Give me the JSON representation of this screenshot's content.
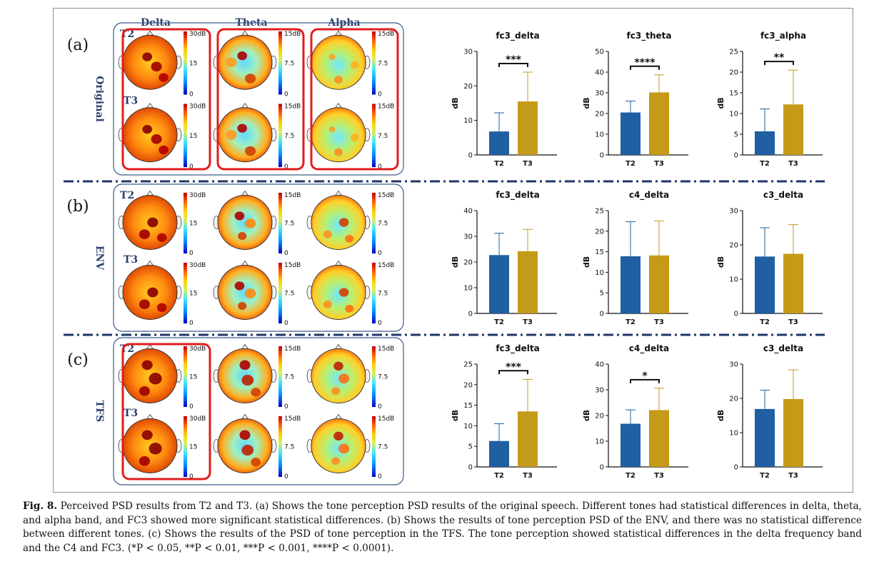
{
  "bands": [
    "Delta",
    "Theta",
    "Alpha"
  ],
  "conditions": [
    {
      "label": "(a)",
      "name": "Original",
      "highlighted_columns": [
        0,
        1,
        2
      ]
    },
    {
      "label": "(b)",
      "name": "ENV",
      "highlighted_columns": []
    },
    {
      "label": "(c)",
      "name": "TFS",
      "highlighted_columns": [
        0
      ]
    }
  ],
  "tones": [
    "T2",
    "T3"
  ],
  "colorbars": {
    "delta": {
      "max": "30dB",
      "mid": "15",
      "min": "0"
    },
    "theta": {
      "max": "15dB",
      "mid": "7.5",
      "min": "0"
    },
    "alpha": {
      "max": "15dB",
      "mid": "7.5",
      "min": "0"
    }
  },
  "colors": {
    "T2": "#1f5fa2",
    "T3": "#c49a18",
    "highlight": "#e11d1d",
    "panel_border": "#3a5a8c",
    "divider": "#1e3767"
  },
  "chart_data": [
    {
      "type": "bar",
      "title": "fc3_delta",
      "ylabel": "dB",
      "categories": [
        "T2",
        "T3"
      ],
      "values": [
        6.8,
        15.5
      ],
      "errors": [
        5.4,
        8.5
      ],
      "ylim": [
        0,
        30
      ],
      "yticks": [
        0,
        10,
        20,
        30
      ],
      "significance": "***"
    },
    {
      "type": "bar",
      "title": "fc3_theta",
      "ylabel": "dB",
      "categories": [
        "T2",
        "T3"
      ],
      "values": [
        20.5,
        30.2
      ],
      "errors": [
        5.5,
        8.5
      ],
      "ylim": [
        0,
        50
      ],
      "yticks": [
        0,
        10,
        20,
        30,
        40,
        50
      ],
      "significance": "****"
    },
    {
      "type": "bar",
      "title": "fc3_alpha",
      "ylabel": "dB",
      "categories": [
        "T2",
        "T3"
      ],
      "values": [
        5.7,
        12.2
      ],
      "errors": [
        5.4,
        8.3
      ],
      "ylim": [
        0,
        25
      ],
      "yticks": [
        0,
        5,
        10,
        15,
        20,
        25
      ],
      "significance": "**"
    },
    {
      "type": "bar",
      "title": "fc3_delta",
      "ylabel": "dB",
      "categories": [
        "T2",
        "T3"
      ],
      "values": [
        22.7,
        24.2
      ],
      "errors": [
        8.5,
        8.5
      ],
      "ylim": [
        0,
        40
      ],
      "yticks": [
        0,
        10,
        20,
        30,
        40
      ],
      "significance": ""
    },
    {
      "type": "bar",
      "title": "c4_delta",
      "ylabel": "dB",
      "categories": [
        "T2",
        "T3"
      ],
      "values": [
        13.9,
        14.1
      ],
      "errors": [
        8.4,
        8.4
      ],
      "ylim": [
        0,
        25
      ],
      "yticks": [
        0,
        5,
        10,
        15,
        20,
        25
      ],
      "significance": ""
    },
    {
      "type": "bar",
      "title": "c3_delta",
      "ylabel": "dB",
      "categories": [
        "T2",
        "T3"
      ],
      "values": [
        16.6,
        17.4
      ],
      "errors": [
        8.4,
        8.5
      ],
      "ylim": [
        0,
        30
      ],
      "yticks": [
        0,
        10,
        20,
        30
      ],
      "significance": ""
    },
    {
      "type": "bar",
      "title": "fc3_delta",
      "ylabel": "dB",
      "categories": [
        "T2",
        "T3"
      ],
      "values": [
        6.3,
        13.5
      ],
      "errors": [
        4.2,
        7.8
      ],
      "ylim": [
        0,
        25
      ],
      "yticks": [
        0,
        5,
        10,
        15,
        20,
        25
      ],
      "significance": "***"
    },
    {
      "type": "bar",
      "title": "c4_delta",
      "ylabel": "dB",
      "categories": [
        "T2",
        "T3"
      ],
      "values": [
        16.8,
        22.1
      ],
      "errors": [
        5.4,
        8.5
      ],
      "ylim": [
        0,
        40
      ],
      "yticks": [
        0,
        10,
        20,
        30,
        40
      ],
      "significance": "*"
    },
    {
      "type": "bar",
      "title": "c3_delta",
      "ylabel": "dB",
      "categories": [
        "T2",
        "T3"
      ],
      "values": [
        16.9,
        19.8
      ],
      "errors": [
        5.5,
        8.5
      ],
      "ylim": [
        0,
        30
      ],
      "yticks": [
        0,
        10,
        20,
        30
      ],
      "significance": ""
    }
  ],
  "caption": {
    "label": "Fig. 8.",
    "text": " Perceived PSD results from T2 and T3. (a) Shows the tone perception PSD results of the original speech. Different tones had statistical differences in delta, theta, and alpha band, and FC3 showed more significant statistical differences. (b) Shows the results of tone perception PSD of the ENV, and there was no statistical difference between different tones. (c) Shows the results of the PSD of tone perception in the TFS. The tone perception showed statistical differences in the delta frequency band and the C4 and FC3. (*P < 0.05, **P < 0.01, ***P < 0.001, ****P < 0.0001)."
  }
}
